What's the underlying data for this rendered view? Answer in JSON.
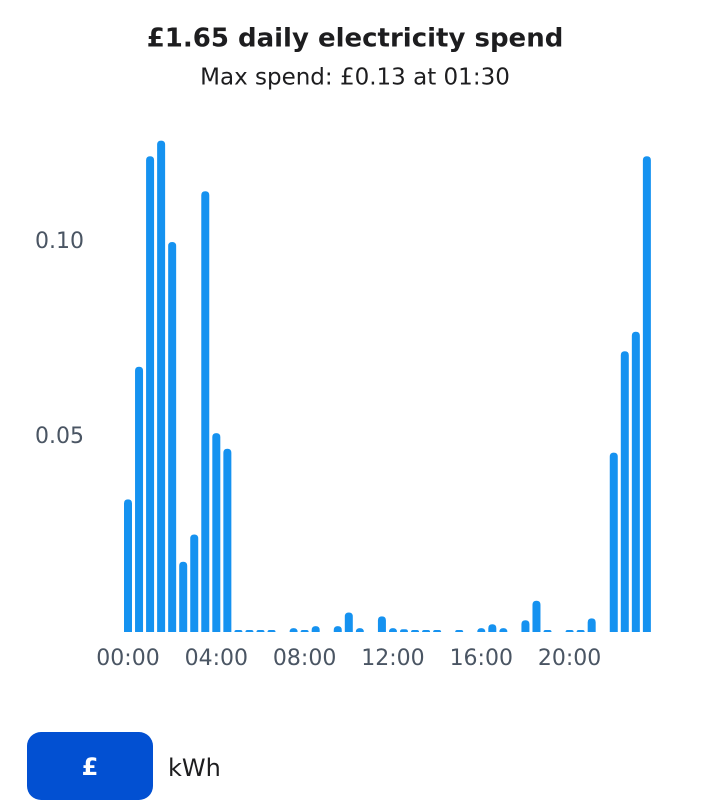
{
  "chart_data": {
    "type": "bar",
    "title": "£1.65 daily electricity spend",
    "subtitle": "Max spend: £0.13 at 01:30",
    "categories": [
      "00:00",
      null,
      null,
      null,
      null,
      null,
      null,
      null,
      "04:00",
      null,
      null,
      null,
      null,
      null,
      null,
      null,
      "08:00",
      null,
      null,
      null,
      null,
      null,
      null,
      null,
      "12:00",
      null,
      null,
      null,
      null,
      null,
      null,
      null,
      "16:00",
      null,
      null,
      null,
      null,
      null,
      null,
      null,
      "20:00",
      null,
      null,
      null,
      null,
      null,
      null,
      null
    ],
    "values": [
      0.034,
      0.068,
      0.122,
      0.126,
      0.1,
      0.018,
      0.025,
      0.113,
      0.051,
      0.047,
      0.0005,
      0.0005,
      0.0005,
      0.0005,
      0,
      0.001,
      0.0005,
      0.0015,
      0,
      0.0015,
      0.005,
      0.001,
      0,
      0.004,
      0.001,
      0.0007,
      0.0005,
      0.0005,
      0.0005,
      0,
      0.0005,
      0,
      0.001,
      0.002,
      0.001,
      0,
      0.003,
      0.008,
      0.0005,
      0,
      0.0005,
      0.0005,
      0.0035,
      0,
      0.046,
      0.072,
      0.077,
      0.122
    ],
    "color": "#1592f0",
    "ylim": [
      0,
      0.13
    ],
    "yticks": [
      0.05,
      {
        "value": 0.1,
        "label": "0.10"
      }
    ],
    "grid": false
  },
  "controls": {
    "options": [
      "£",
      "kWh"
    ]
  }
}
